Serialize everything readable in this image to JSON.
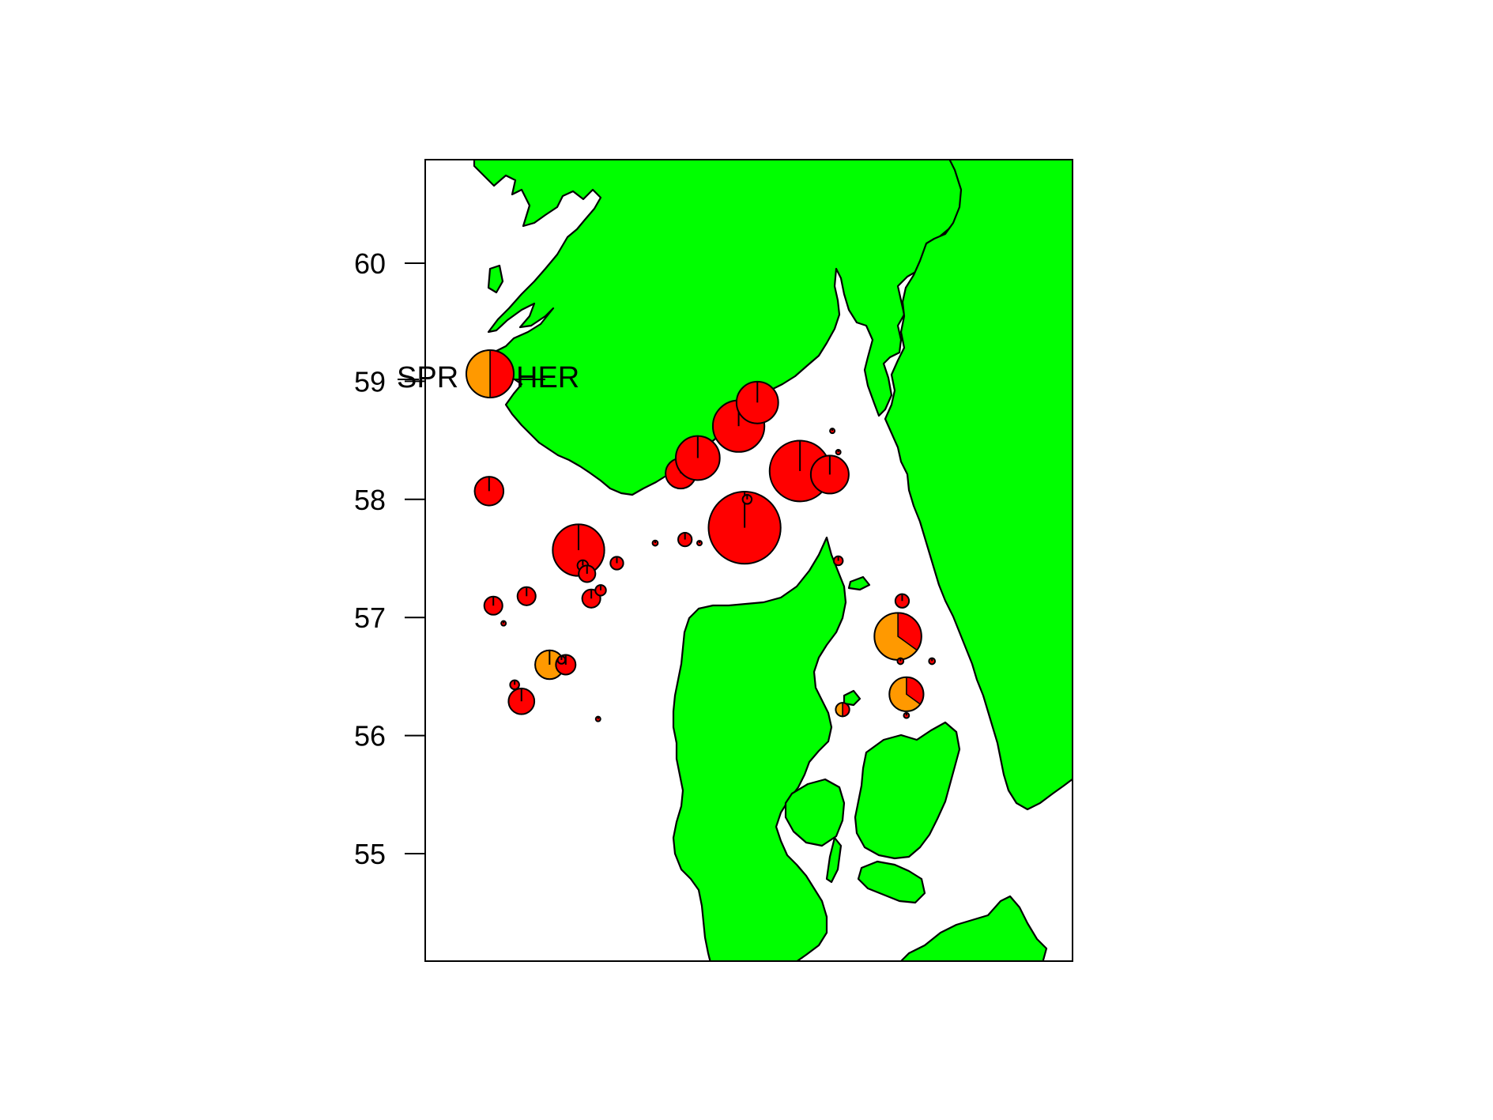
{
  "colors": {
    "land": "#00ff00",
    "sea": "#ffffff",
    "herring": "#ff0000",
    "sprat": "#ff9900",
    "border": "#000000"
  },
  "axis": {
    "y_ticks": [
      "60",
      "59",
      "58",
      "57",
      "56",
      "55"
    ],
    "y_tick_values": [
      60,
      59,
      58,
      57,
      56,
      55
    ],
    "lat_range": [
      54.1,
      60.9
    ],
    "lon_range": [
      5.5,
      13.1
    ]
  },
  "legend": {
    "left_label": "SPR",
    "right_label": "HER",
    "sprat_share": 0.5
  },
  "chart_data": {
    "type": "scatter",
    "subtype": "pie-map",
    "categories": [
      "SPR",
      "HER"
    ],
    "ylabel": "",
    "xlabel": "",
    "ylim": [
      54.1,
      60.9
    ],
    "xlim": [
      5.5,
      13.1
    ],
    "points": [
      {
        "lon": 6.25,
        "lat": 58.07,
        "size": 0.38,
        "sprat": 0
      },
      {
        "lon": 7.3,
        "lat": 57.57,
        "size": 0.68,
        "sprat": 0
      },
      {
        "lon": 7.35,
        "lat": 57.44,
        "size": 0.14,
        "sprat": 0
      },
      {
        "lon": 7.4,
        "lat": 57.37,
        "size": 0.22,
        "sprat": 0
      },
      {
        "lon": 7.75,
        "lat": 57.46,
        "size": 0.17,
        "sprat": 0
      },
      {
        "lon": 8.2,
        "lat": 57.63,
        "size": 0.07,
        "sprat": 0
      },
      {
        "lon": 8.55,
        "lat": 57.66,
        "size": 0.18,
        "sprat": 0
      },
      {
        "lon": 8.72,
        "lat": 57.63,
        "size": 0.03,
        "sprat": 0
      },
      {
        "lon": 8.5,
        "lat": 58.22,
        "size": 0.4,
        "sprat": 0
      },
      {
        "lon": 8.7,
        "lat": 58.35,
        "size": 0.58,
        "sprat": 0
      },
      {
        "lon": 9.18,
        "lat": 58.62,
        "size": 0.68,
        "sprat": 0
      },
      {
        "lon": 9.4,
        "lat": 58.82,
        "size": 0.55,
        "sprat": 0
      },
      {
        "lon": 9.9,
        "lat": 58.24,
        "size": 0.8,
        "sprat": 0
      },
      {
        "lon": 10.25,
        "lat": 58.21,
        "size": 0.5,
        "sprat": 0
      },
      {
        "lon": 9.25,
        "lat": 57.76,
        "size": 0.95,
        "sprat": 0
      },
      {
        "lon": 9.28,
        "lat": 58.0,
        "size": 0.12,
        "sprat": 0
      },
      {
        "lon": 10.28,
        "lat": 58.58,
        "size": 0.06,
        "sprat": 0
      },
      {
        "lon": 10.35,
        "lat": 58.4,
        "size": 0.03,
        "sprat": 0
      },
      {
        "lon": 10.35,
        "lat": 57.48,
        "size": 0.12,
        "sprat": 0
      },
      {
        "lon": 6.3,
        "lat": 57.1,
        "size": 0.24,
        "sprat": 0
      },
      {
        "lon": 6.42,
        "lat": 56.95,
        "size": 0.04,
        "sprat": 0
      },
      {
        "lon": 6.69,
        "lat": 57.18,
        "size": 0.24,
        "sprat": 0
      },
      {
        "lon": 7.45,
        "lat": 57.16,
        "size": 0.24,
        "sprat": 0
      },
      {
        "lon": 7.56,
        "lat": 57.23,
        "size": 0.14,
        "sprat": 0
      },
      {
        "lon": 6.96,
        "lat": 56.6,
        "size": 0.38,
        "sprat": 1.0
      },
      {
        "lon": 7.15,
        "lat": 56.6,
        "size": 0.26,
        "sprat": 0
      },
      {
        "lon": 7.1,
        "lat": 56.64,
        "size": 0.1,
        "sprat": 0
      },
      {
        "lon": 6.55,
        "lat": 56.43,
        "size": 0.12,
        "sprat": 0
      },
      {
        "lon": 6.63,
        "lat": 56.29,
        "size": 0.34,
        "sprat": 0
      },
      {
        "lon": 7.53,
        "lat": 56.14,
        "size": 0.03,
        "sprat": 0
      },
      {
        "lon": 11.1,
        "lat": 57.14,
        "size": 0.18,
        "sprat": 0
      },
      {
        "lon": 11.05,
        "lat": 56.84,
        "size": 0.62,
        "sprat": 0.65
      },
      {
        "lon": 11.08,
        "lat": 56.63,
        "size": 0.08,
        "sprat": 0
      },
      {
        "lon": 11.45,
        "lat": 56.63,
        "size": 0.08,
        "sprat": 0
      },
      {
        "lon": 11.15,
        "lat": 56.35,
        "size": 0.45,
        "sprat": 0.65
      },
      {
        "lon": 11.15,
        "lat": 56.17,
        "size": 0.07,
        "sprat": 0
      },
      {
        "lon": 10.4,
        "lat": 56.22,
        "size": 0.18,
        "sprat": 0.5
      }
    ]
  }
}
